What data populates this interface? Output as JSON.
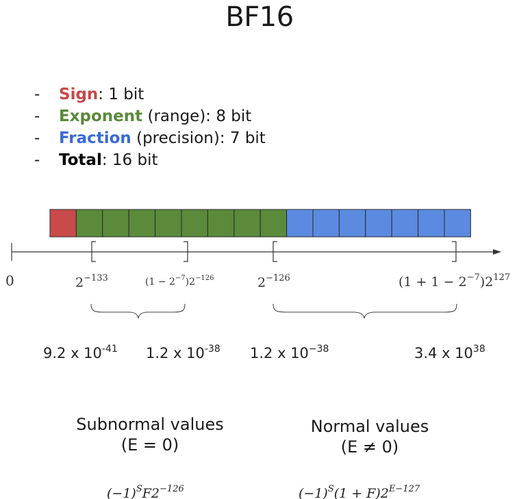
{
  "title": "BF16",
  "bullets": [
    {
      "dash": "-",
      "term": "Sign",
      "rest": ": 1 bit",
      "color": "#c44848"
    },
    {
      "dash": "-",
      "term": "Exponent",
      "rest": " (range): 8 bit",
      "color": "#5a8a3a"
    },
    {
      "dash": "-",
      "term": "Fraction",
      "rest": " (precision): 7 bit",
      "color": "#3a6ad6"
    },
    {
      "dash": "-",
      "term": "Total",
      "rest": ": 16 bit",
      "color": "#000000"
    }
  ],
  "bit_layout": {
    "sign_bits": 1,
    "exponent_bits": 8,
    "fraction_bits": 7,
    "colors": {
      "sign": "#c94a4a",
      "exponent": "#5a8a3a",
      "fraction": "#5b8ae0"
    }
  },
  "axis": {
    "zero": "0",
    "subnormal_min": {
      "base": "2",
      "exp": "−133"
    },
    "subnormal_max": {
      "pre": "(1 − 2",
      "pre_exp": "−7",
      "mid": ")2",
      "exp": "−126"
    },
    "normal_min": {
      "base": "2",
      "exp": "−126"
    },
    "normal_max": {
      "pre": "(1 + 1 − 2",
      "pre_exp": "−7",
      "mid": ")2",
      "exp": "127"
    }
  },
  "decimal_values": [
    {
      "mant": "9.2 x 10",
      "exp": "-41"
    },
    {
      "mant": "1.2 x 10",
      "exp": "-38"
    },
    {
      "mant": "1.2 x 10",
      "exp": "−38"
    },
    {
      "mant": "3.4 x 10",
      "exp": "38"
    }
  ],
  "subnormal": {
    "label": "Subnormal values",
    "cond": "(E = 0)",
    "formula": {
      "a": "(−1)",
      "a_exp": "S",
      "b": "F2",
      "b_exp": "−126"
    }
  },
  "normal": {
    "label": "Normal values",
    "cond": "(E ≠ 0)",
    "formula": {
      "a": "(−1)",
      "a_exp": "S",
      "b": "(1 + F)2",
      "b_exp": "E−127"
    }
  }
}
